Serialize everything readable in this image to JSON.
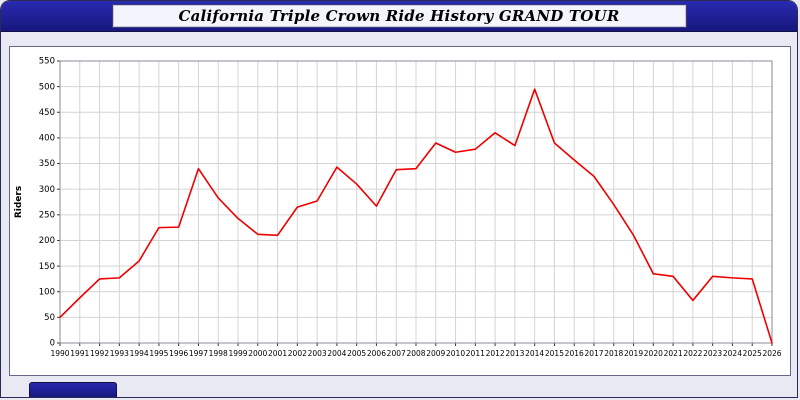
{
  "header": {
    "title": "California Triple Crown Ride History GRAND TOUR"
  },
  "chart_data": {
    "type": "line",
    "title": "California Triple Crown Ride History GRAND TOUR",
    "xlabel": "",
    "ylabel": "Riders",
    "ylim": [
      0,
      550
    ],
    "ytick_step": 50,
    "grid": true,
    "legend": "none",
    "line_color": "#ee0000",
    "grid_color": "#d4d4d4",
    "categories": [
      1990,
      1991,
      1992,
      1993,
      1994,
      1995,
      1996,
      1997,
      1998,
      1999,
      2000,
      2001,
      2002,
      2003,
      2004,
      2005,
      2006,
      2007,
      2008,
      2009,
      2010,
      2011,
      2012,
      2013,
      2014,
      2015,
      2016,
      2017,
      2018,
      2019,
      2020,
      2021,
      2022,
      2023,
      2024,
      2025,
      2026
    ],
    "values": [
      50,
      88,
      125,
      127,
      160,
      225,
      226,
      340,
      283,
      243,
      212,
      210,
      265,
      277,
      343,
      310,
      267,
      338,
      340,
      390,
      372,
      378,
      410,
      385,
      495,
      390,
      357,
      325,
      270,
      210,
      135,
      130,
      83,
      130,
      127,
      125,
      0
    ]
  }
}
